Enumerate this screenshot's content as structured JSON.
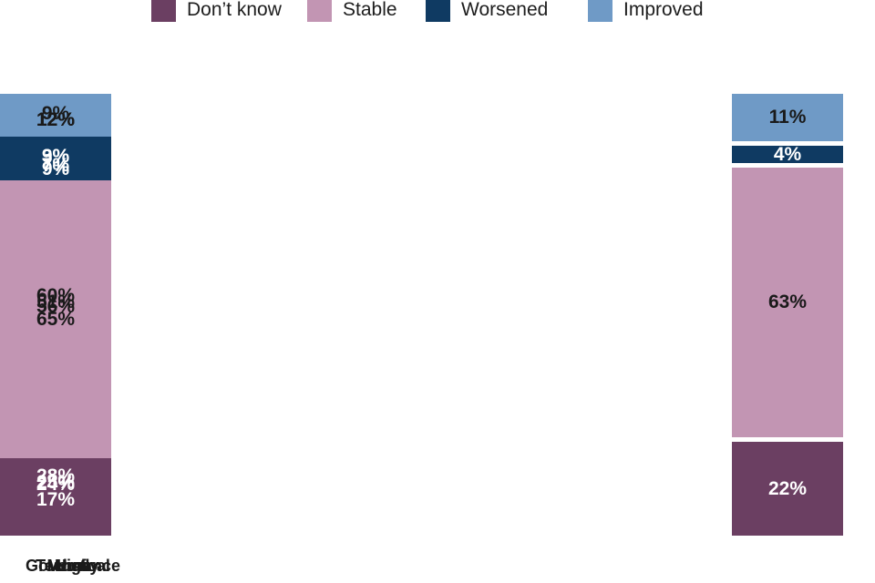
{
  "legend": {
    "items": [
      {
        "label": "Don’t know",
        "color": "#6b3f62"
      },
      {
        "label": "Stable",
        "color": "#c295b3"
      },
      {
        "label": "Worsened",
        "color": "#0f3a62"
      },
      {
        "label": "Improved",
        "color": "#6f9ac6"
      }
    ]
  },
  "chart_data": {
    "type": "bar",
    "stacked": true,
    "orientation": "vertical",
    "unit": "percent",
    "ylim": [
      0,
      100
    ],
    "grid": false,
    "legend_position": "top",
    "categories": [
      "Low",
      "Governance",
      "Technical",
      "Mostly",
      "High"
    ],
    "stack_order_top_to_bottom": [
      "Improved",
      "Worsened",
      "Stable",
      "Don’t know"
    ],
    "series": [
      {
        "name": "Don’t know",
        "color": "#6b3f62",
        "label_color": "#ffffff",
        "values": [
          22,
          24,
          25,
          28,
          17
        ],
        "labels": [
          "22%",
          "24%",
          "25%",
          "28%",
          "17%"
        ]
      },
      {
        "name": "Stable",
        "color": "#c295b3",
        "label_color": "#1a1a1a",
        "values": [
          63,
          56,
          60,
          51,
          65
        ],
        "labels": [
          "63%",
          "56%",
          "60%",
          "51%",
          "65%"
        ]
      },
      {
        "name": "Worsened",
        "color": "#0f3a62",
        "label_color": "#ffffff",
        "values": [
          4,
          7,
          3,
          9,
          9
        ],
        "labels": [
          "4%",
          "7%",
          "3%",
          "9%",
          "9%"
        ]
      },
      {
        "name": "Improved",
        "color": "#6f9ac6",
        "label_color": "#1a1a1a",
        "values": [
          11,
          12,
          12,
          12,
          9
        ],
        "labels": [
          "11%",
          "12%",
          "12%",
          "12%",
          "9%"
        ]
      }
    ]
  }
}
